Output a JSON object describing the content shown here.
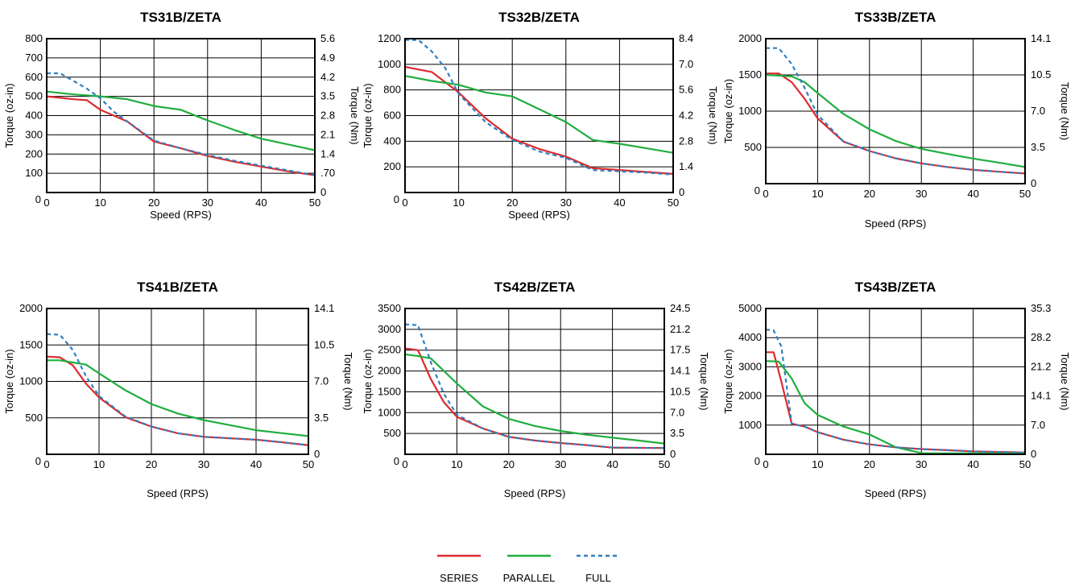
{
  "colors": {
    "series": "#dc2b2f",
    "parallel": "#1fae3e",
    "full": "#2f7fc1",
    "grid": "#000000",
    "background": "#ffffff"
  },
  "legend": [
    {
      "key": "series",
      "label": "SERIES"
    },
    {
      "key": "parallel",
      "label": "PARALLEL"
    },
    {
      "key": "full",
      "label": "FULL"
    }
  ],
  "chart_data": [
    {
      "type": "line",
      "title": "TS31B/ZETA",
      "xlabel": "Speed (RPS)",
      "ylabel": "Torque (oz-in)",
      "y2label": "Torque (Nm)",
      "xlim": [
        0,
        50
      ],
      "ylim": [
        0,
        800
      ],
      "xticks": [
        "0",
        "10",
        "20",
        "30",
        "40",
        "50"
      ],
      "yticks": [
        "0",
        "100",
        "200",
        "300",
        "400",
        "500",
        "600",
        "700",
        "800"
      ],
      "y2ticks": [
        "0",
        ".70",
        "1.4",
        "2.1",
        "2.8",
        "3.5",
        "4.2",
        "4.9",
        "5.6"
      ],
      "grid": true,
      "series": [
        {
          "key": "series",
          "x": [
            0,
            5,
            7.5,
            10,
            15,
            20,
            25,
            30,
            35,
            40,
            45,
            50
          ],
          "y": [
            500,
            485,
            480,
            430,
            370,
            265,
            230,
            190,
            160,
            135,
            110,
            90
          ]
        },
        {
          "key": "parallel",
          "x": [
            0,
            5,
            10,
            15,
            20,
            25,
            30,
            35,
            40,
            45,
            50
          ],
          "y": [
            525,
            510,
            500,
            485,
            450,
            430,
            375,
            325,
            280,
            250,
            220
          ]
        },
        {
          "key": "full",
          "x": [
            0,
            2.5,
            5,
            7.5,
            10,
            12.5,
            15,
            20,
            25,
            30,
            35,
            40,
            45,
            50
          ],
          "y": [
            620,
            620,
            580,
            540,
            490,
            420,
            370,
            270,
            230,
            195,
            165,
            140,
            115,
            90
          ]
        }
      ]
    },
    {
      "type": "line",
      "title": "TS32B/ZETA",
      "xlabel": "Speed (RPS)",
      "ylabel": "Torque (oz-in)",
      "y2label": "Torque (Nm)",
      "xlim": [
        0,
        50
      ],
      "ylim": [
        0,
        1200
      ],
      "xticks": [
        "0",
        "10",
        "20",
        "30",
        "40",
        "50"
      ],
      "yticks": [
        "0",
        "200",
        "400",
        "600",
        "800",
        "1000",
        "1200"
      ],
      "y2ticks": [
        "0",
        "1.4",
        "2.8",
        "4.2",
        "5.6",
        "7.0",
        "8.4"
      ],
      "grid": true,
      "series": [
        {
          "key": "series",
          "x": [
            0,
            5,
            10,
            15,
            20,
            25,
            30,
            35,
            40,
            45,
            50
          ],
          "y": [
            980,
            940,
            780,
            580,
            420,
            340,
            280,
            190,
            175,
            160,
            145
          ]
        },
        {
          "key": "parallel",
          "x": [
            0,
            5,
            10,
            15,
            20,
            25,
            30,
            35,
            40,
            45,
            50
          ],
          "y": [
            910,
            870,
            840,
            780,
            750,
            650,
            550,
            410,
            380,
            345,
            310
          ]
        },
        {
          "key": "full",
          "x": [
            0,
            2.5,
            5,
            7.5,
            10,
            15,
            20,
            25,
            30,
            35,
            40,
            45,
            50
          ],
          "y": [
            1190,
            1190,
            1100,
            970,
            770,
            550,
            410,
            320,
            270,
            175,
            165,
            155,
            140
          ]
        }
      ]
    },
    {
      "type": "line",
      "title": "TS33B/ZETA",
      "xlabel": "Speed (RPS)",
      "ylabel": "Torque (oz-in)",
      "y2label": "Torque (Nm)",
      "xlim": [
        0,
        50
      ],
      "ylim": [
        0,
        2000
      ],
      "xticks": [
        "0",
        "10",
        "20",
        "30",
        "40",
        "50"
      ],
      "yticks": [
        "0",
        "500",
        "1000",
        "1500",
        "2000"
      ],
      "y2ticks": [
        "0",
        "3.5",
        "7.0",
        "10.5",
        "14.1"
      ],
      "grid": true,
      "series": [
        {
          "key": "series",
          "x": [
            0,
            2.5,
            5,
            7.5,
            10,
            15,
            20,
            25,
            30,
            35,
            40,
            45,
            50
          ],
          "y": [
            1520,
            1520,
            1400,
            1170,
            900,
            580,
            450,
            350,
            280,
            230,
            190,
            165,
            140
          ]
        },
        {
          "key": "parallel",
          "x": [
            0,
            5,
            7.5,
            10,
            15,
            20,
            25,
            30,
            35,
            40,
            45,
            50
          ],
          "y": [
            1500,
            1480,
            1400,
            1250,
            960,
            750,
            590,
            480,
            410,
            345,
            290,
            230
          ]
        },
        {
          "key": "full",
          "x": [
            0,
            2.5,
            5,
            7.5,
            10,
            15,
            20,
            25,
            30,
            35,
            40,
            45,
            50
          ],
          "y": [
            1870,
            1870,
            1650,
            1320,
            950,
            580,
            450,
            350,
            280,
            230,
            190,
            165,
            140
          ]
        }
      ]
    },
    {
      "type": "line",
      "title": "TS41B/ZETA",
      "xlabel": "Speed (RPS)",
      "ylabel": "Torque (oz-in)",
      "y2label": "Torque (Nm)",
      "xlim": [
        0,
        50
      ],
      "ylim": [
        0,
        2000
      ],
      "xticks": [
        "0",
        "10",
        "20",
        "30",
        "40",
        "50"
      ],
      "yticks": [
        "0",
        "500",
        "1000",
        "1500",
        "2000"
      ],
      "y2ticks": [
        "0",
        "3.5",
        "7.0",
        "10.5",
        "14.1"
      ],
      "grid": true,
      "series": [
        {
          "key": "series",
          "x": [
            0,
            2.5,
            5,
            7.5,
            10,
            15,
            20,
            25,
            30,
            35,
            40,
            45,
            50
          ],
          "y": [
            1340,
            1330,
            1220,
            970,
            780,
            510,
            380,
            290,
            240,
            220,
            200,
            165,
            125
          ]
        },
        {
          "key": "parallel",
          "x": [
            0,
            2.5,
            5,
            7.5,
            10,
            15,
            20,
            25,
            30,
            35,
            40,
            45,
            50
          ],
          "y": [
            1290,
            1290,
            1260,
            1230,
            1110,
            880,
            690,
            560,
            470,
            400,
            330,
            290,
            250
          ]
        },
        {
          "key": "full",
          "x": [
            0,
            2.5,
            5,
            7.5,
            10,
            15,
            20,
            25,
            30,
            35,
            40,
            45,
            50
          ],
          "y": [
            1650,
            1640,
            1430,
            1070,
            800,
            520,
            380,
            290,
            240,
            220,
            200,
            165,
            125
          ]
        }
      ]
    },
    {
      "type": "line",
      "title": "TS42B/ZETA",
      "xlabel": "Speed (RPS)",
      "ylabel": "Torque (oz-in)",
      "y2label": "Torque (Nm)",
      "xlim": [
        0,
        50
      ],
      "ylim": [
        0,
        3500
      ],
      "xticks": [
        "0",
        "10",
        "20",
        "30",
        "40",
        "50"
      ],
      "yticks": [
        "0",
        "500",
        "1000",
        "1500",
        "2000",
        "2500",
        "3000",
        "3500"
      ],
      "y2ticks": [
        "0",
        "3.5",
        "7.0",
        "10.5",
        "14.1",
        "17.5",
        "21.2",
        "24.5"
      ],
      "grid": true,
      "series": [
        {
          "key": "series",
          "x": [
            0,
            2.5,
            5,
            7.5,
            10,
            15,
            20,
            25,
            30,
            35,
            40,
            45,
            50
          ],
          "y": [
            2540,
            2500,
            1800,
            1250,
            900,
            620,
            420,
            330,
            270,
            220,
            160,
            155,
            150
          ]
        },
        {
          "key": "parallel",
          "x": [
            0,
            2.5,
            5,
            7.5,
            10,
            15,
            20,
            25,
            30,
            35,
            40,
            45,
            50
          ],
          "y": [
            2400,
            2360,
            2300,
            2000,
            1700,
            1150,
            850,
            680,
            560,
            470,
            400,
            330,
            260
          ]
        },
        {
          "key": "full",
          "x": [
            0,
            2.5,
            5,
            7.5,
            10,
            15,
            20,
            25,
            30,
            35,
            40,
            45,
            50
          ],
          "y": [
            3120,
            3100,
            2200,
            1450,
            950,
            620,
            420,
            330,
            270,
            220,
            160,
            155,
            150
          ]
        }
      ]
    },
    {
      "type": "line",
      "title": "TS43B/ZETA",
      "xlabel": "Speed (RPS)",
      "ylabel": "Torque (oz-in)",
      "y2label": "Torque (Nm)",
      "xlim": [
        0,
        50
      ],
      "ylim": [
        0,
        5000
      ],
      "xticks": [
        "0",
        "10",
        "20",
        "30",
        "40",
        "50"
      ],
      "yticks": [
        "0",
        "1000",
        "2000",
        "3000",
        "4000",
        "5000"
      ],
      "y2ticks": [
        "0",
        "7.0",
        "14.1",
        "21.2",
        "28.2",
        "35.3"
      ],
      "grid": true,
      "series": [
        {
          "key": "series",
          "x": [
            0,
            1.5,
            3,
            5,
            7.5,
            10,
            15,
            20,
            25,
            30,
            35,
            40,
            45,
            50
          ],
          "y": [
            3500,
            3500,
            2500,
            1050,
            950,
            760,
            500,
            340,
            240,
            180,
            140,
            100,
            80,
            60
          ]
        },
        {
          "key": "parallel",
          "x": [
            0,
            2.5,
            5,
            7.5,
            10,
            15,
            20,
            25,
            30,
            35,
            40,
            45,
            50
          ],
          "y": [
            3200,
            3180,
            2600,
            1750,
            1350,
            950,
            680,
            250,
            40,
            30,
            30,
            30,
            30
          ]
        },
        {
          "key": "full",
          "x": [
            0,
            1.5,
            3,
            5,
            7.5,
            10,
            15,
            20,
            25,
            30,
            35,
            40,
            45,
            50
          ],
          "y": [
            4280,
            4250,
            3700,
            1050,
            950,
            760,
            500,
            340,
            240,
            180,
            140,
            100,
            80,
            60
          ]
        }
      ]
    }
  ]
}
